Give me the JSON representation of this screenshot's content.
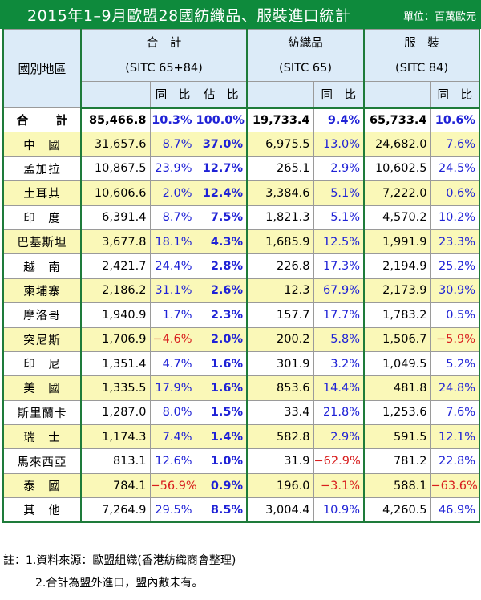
{
  "title": "2015年1–9月歐盟28國紡織品、服裝進口統計",
  "unit": "單位：百萬歐元",
  "headers": {
    "region": "國別地區",
    "total": "合　計",
    "total_sitc": "(SITC 65+84)",
    "textile": "紡織品",
    "textile_sitc": "(SITC 65)",
    "apparel": "服　裝",
    "apparel_sitc": "(SITC 84)",
    "yoy": "同　比",
    "share": "佔　比"
  },
  "rows": [
    {
      "name": "合　計",
      "total": "85,466.8",
      "yoy": "10.3%",
      "share": "100.0%",
      "textile": "19,733.4",
      "textile_yoy": "9.4%",
      "apparel": "65,733.4",
      "apparel_yoy": "10.6%"
    },
    {
      "name": "中　國",
      "total": "31,657.6",
      "yoy": "8.7%",
      "share": "37.0%",
      "textile": "6,975.5",
      "textile_yoy": "13.0%",
      "apparel": "24,682.0",
      "apparel_yoy": "7.6%"
    },
    {
      "name": "孟加拉",
      "total": "10,867.5",
      "yoy": "23.9%",
      "share": "12.7%",
      "textile": "265.1",
      "textile_yoy": "2.9%",
      "apparel": "10,602.5",
      "apparel_yoy": "24.5%"
    },
    {
      "name": "土耳其",
      "total": "10,606.6",
      "yoy": "2.0%",
      "share": "12.4%",
      "textile": "3,384.6",
      "textile_yoy": "5.1%",
      "apparel": "7,222.0",
      "apparel_yoy": "0.6%"
    },
    {
      "name": "印　度",
      "total": "6,391.4",
      "yoy": "8.7%",
      "share": "7.5%",
      "textile": "1,821.3",
      "textile_yoy": "5.1%",
      "apparel": "4,570.2",
      "apparel_yoy": "10.2%"
    },
    {
      "name": "巴基斯坦",
      "total": "3,677.8",
      "yoy": "18.1%",
      "share": "4.3%",
      "textile": "1,685.9",
      "textile_yoy": "12.5%",
      "apparel": "1,991.9",
      "apparel_yoy": "23.3%"
    },
    {
      "name": "越　南",
      "total": "2,421.7",
      "yoy": "24.4%",
      "share": "2.8%",
      "textile": "226.8",
      "textile_yoy": "17.3%",
      "apparel": "2,194.9",
      "apparel_yoy": "25.2%"
    },
    {
      "name": "柬埔寨",
      "total": "2,186.2",
      "yoy": "31.1%",
      "share": "2.6%",
      "textile": "12.3",
      "textile_yoy": "67.9%",
      "apparel": "2,173.9",
      "apparel_yoy": "30.9%"
    },
    {
      "name": "摩洛哥",
      "total": "1,940.9",
      "yoy": "1.7%",
      "share": "2.3%",
      "textile": "157.7",
      "textile_yoy": "17.7%",
      "apparel": "1,783.2",
      "apparel_yoy": "0.5%"
    },
    {
      "name": "突尼斯",
      "total": "1,706.9",
      "yoy": "−4.6%",
      "share": "2.0%",
      "textile": "200.2",
      "textile_yoy": "5.8%",
      "apparel": "1,506.7",
      "apparel_yoy": "−5.9%"
    },
    {
      "name": "印　尼",
      "total": "1,351.4",
      "yoy": "4.7%",
      "share": "1.6%",
      "textile": "301.9",
      "textile_yoy": "3.2%",
      "apparel": "1,049.5",
      "apparel_yoy": "5.2%"
    },
    {
      "name": "美　國",
      "total": "1,335.5",
      "yoy": "17.9%",
      "share": "1.6%",
      "textile": "853.6",
      "textile_yoy": "14.4%",
      "apparel": "481.8",
      "apparel_yoy": "24.8%"
    },
    {
      "name": "斯里蘭卡",
      "total": "1,287.0",
      "yoy": "8.0%",
      "share": "1.5%",
      "textile": "33.4",
      "textile_yoy": "21.8%",
      "apparel": "1,253.6",
      "apparel_yoy": "7.6%"
    },
    {
      "name": "瑞　士",
      "total": "1,174.3",
      "yoy": "7.4%",
      "share": "1.4%",
      "textile": "582.8",
      "textile_yoy": "2.9%",
      "apparel": "591.5",
      "apparel_yoy": "12.1%"
    },
    {
      "name": "馬來西亞",
      "total": "813.1",
      "yoy": "12.6%",
      "share": "1.0%",
      "textile": "31.9",
      "textile_yoy": "−62.9%",
      "apparel": "781.2",
      "apparel_yoy": "22.8%"
    },
    {
      "name": "泰　國",
      "total": "784.1",
      "yoy": "−56.9%",
      "share": "0.9%",
      "textile": "196.0",
      "textile_yoy": "−3.1%",
      "apparel": "588.1",
      "apparel_yoy": "−63.6%"
    },
    {
      "name": "其　他",
      "total": "7,264.9",
      "yoy": "29.5%",
      "share": "8.5%",
      "textile": "3,004.4",
      "textile_yoy": "10.9%",
      "apparel": "4,260.5",
      "apparel_yoy": "46.9%"
    }
  ],
  "notes": {
    "line1": "註：1.資料來源：歐盟組織(香港紡織商會整理)",
    "line2": "2.合計為盟外進口，盟內數未有。"
  },
  "colors": {
    "title_bg": "#0e8a3c",
    "header_bg": "#dcebf8",
    "row_highlight": "#faf8b8",
    "positive": "#1f22d6",
    "negative": "#d81e1e"
  }
}
